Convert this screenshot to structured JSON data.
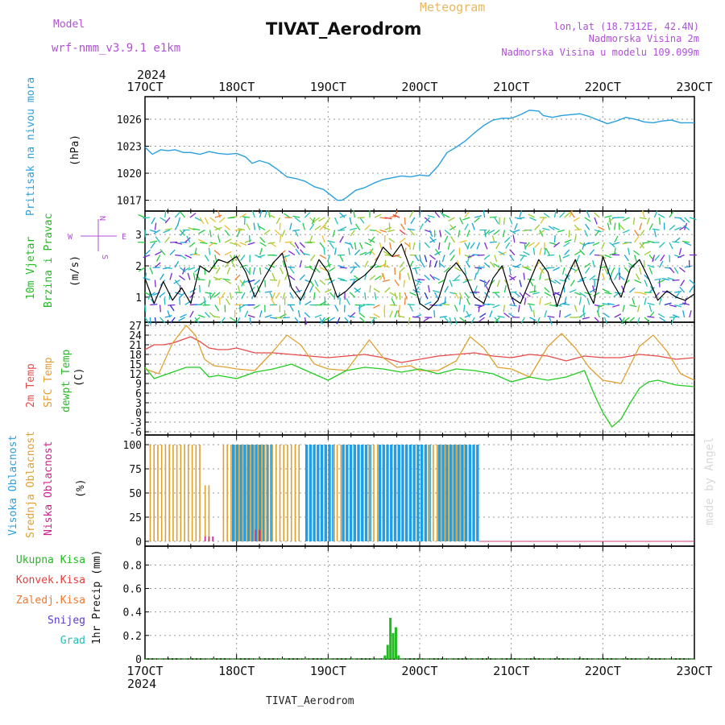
{
  "header": {
    "model_label": "Model",
    "model_name": "wrf-nmm_v3.9.1  e1km",
    "meteogram_label": "Meteogram",
    "station_title": "TIVAT_Aerodrom",
    "lonlat": "lon,lat (18.7312E, 42.4N)",
    "altitude": "Nadmorska Visina 2m",
    "model_altitude": "Nadmorska Visina u modelu 109.099m",
    "footer_station": "TIVAT_Aerodrom",
    "watermark": "made by Angel"
  },
  "x_axis": {
    "year": "2024",
    "ticks": [
      "17OCT",
      "18OCT",
      "19OCT",
      "20OCT",
      "21OCT",
      "22OCT",
      "23OCT"
    ]
  },
  "colors": {
    "pressure": "#2aa0e0",
    "temp2m": "#e84a4a",
    "sfc": "#e0a030",
    "dewpt": "#22cc22",
    "high_cloud": "#1e9ee6",
    "mid_cloud": "#e0a030",
    "low_cloud": "#d0208a",
    "precip_total": "#22bb22",
    "conv": "#e83c3c",
    "frozen": "#f07830",
    "snow": "#5a3ad0",
    "grad": "#22c0b8",
    "wind_speed_line": "#000000",
    "purple_label": "#b050d8"
  },
  "chart_data": [
    {
      "type": "line",
      "panel": "pressure",
      "ylabel": [
        "Pritisak na nivou mora",
        "(hPa)"
      ],
      "yticks": [
        1017,
        1020,
        1023,
        1026
      ],
      "ylim": [
        1015.8,
        1028.5
      ],
      "x_day_range": [
        17,
        23
      ],
      "series": [
        {
          "color_key": "pressure",
          "x": [
            17.0,
            17.08,
            17.17,
            17.25,
            17.33,
            17.42,
            17.5,
            17.6,
            17.7,
            17.8,
            17.9,
            18.0,
            18.1,
            18.17,
            18.25,
            18.35,
            18.45,
            18.55,
            18.65,
            18.75,
            18.85,
            18.95,
            19.05,
            19.1,
            19.15,
            19.2,
            19.3,
            19.4,
            19.5,
            19.6,
            19.7,
            19.8,
            19.9,
            20.0,
            20.1,
            20.2,
            20.3,
            20.4,
            20.5,
            20.6,
            20.7,
            20.8,
            20.9,
            21.0,
            21.1,
            21.2,
            21.3,
            21.35,
            21.45,
            21.55,
            21.65,
            21.75,
            21.85,
            21.95,
            22.05,
            22.15,
            22.25,
            22.35,
            22.45,
            22.55,
            22.65,
            22.75,
            22.85,
            23.0
          ],
          "y": [
            1022.9,
            1022.1,
            1022.6,
            1022.5,
            1022.6,
            1022.3,
            1022.3,
            1022.1,
            1022.4,
            1022.2,
            1022.1,
            1022.2,
            1021.8,
            1021.1,
            1021.4,
            1021.1,
            1020.4,
            1019.6,
            1019.4,
            1019.1,
            1018.5,
            1018.2,
            1017.4,
            1017.0,
            1017.0,
            1017.3,
            1018.1,
            1018.4,
            1018.9,
            1019.3,
            1019.5,
            1019.7,
            1019.6,
            1019.8,
            1019.7,
            1020.8,
            1022.3,
            1022.9,
            1023.6,
            1024.5,
            1025.3,
            1025.9,
            1026.1,
            1026.1,
            1026.5,
            1027.0,
            1026.9,
            1026.4,
            1026.2,
            1026.4,
            1026.5,
            1026.6,
            1026.3,
            1025.9,
            1025.5,
            1025.8,
            1026.2,
            1026.0,
            1025.7,
            1025.6,
            1025.8,
            1025.9,
            1025.6,
            1025.6
          ]
        }
      ]
    },
    {
      "type": "line",
      "panel": "wind",
      "ylabel": [
        "10m Vjetar",
        "Brzina i Pravac",
        "(m/s)"
      ],
      "yticks": [
        1,
        2,
        3
      ],
      "ylim": [
        0.2,
        3.75
      ],
      "legend_glyph": [
        "W",
        "E",
        "N",
        "S"
      ],
      "series": [
        {
          "color_key": "wind_speed_line",
          "x": [
            17.0,
            17.1,
            17.2,
            17.3,
            17.4,
            17.5,
            17.6,
            17.7,
            17.8,
            17.9,
            18.0,
            18.1,
            18.2,
            18.3,
            18.4,
            18.5,
            18.6,
            18.7,
            18.8,
            18.9,
            19.0,
            19.1,
            19.2,
            19.3,
            19.4,
            19.5,
            19.6,
            19.7,
            19.8,
            19.9,
            20.0,
            20.1,
            20.2,
            20.3,
            20.4,
            20.5,
            20.6,
            20.7,
            20.8,
            20.9,
            21.0,
            21.1,
            21.2,
            21.3,
            21.4,
            21.5,
            21.6,
            21.7,
            21.8,
            21.9,
            22.0,
            22.1,
            22.2,
            22.3,
            22.4,
            22.5,
            22.6,
            22.7,
            22.8,
            22.9,
            23.0
          ],
          "y": [
            1.6,
            0.8,
            1.5,
            0.9,
            1.3,
            0.8,
            2.0,
            1.8,
            2.2,
            2.1,
            2.3,
            1.8,
            1.0,
            1.6,
            2.1,
            2.4,
            1.3,
            0.9,
            1.5,
            2.2,
            1.8,
            1.0,
            1.2,
            1.5,
            1.7,
            2.0,
            2.6,
            2.3,
            2.7,
            1.9,
            0.8,
            0.6,
            0.9,
            1.8,
            2.1,
            1.7,
            1.0,
            0.8,
            1.6,
            2.0,
            1.0,
            0.8,
            1.5,
            2.2,
            1.8,
            0.7,
            1.6,
            2.2,
            1.4,
            0.8,
            2.3,
            1.5,
            1.0,
            1.9,
            2.2,
            1.6,
            0.9,
            1.2,
            1.0,
            0.9,
            1.1
          ]
        }
      ]
    },
    {
      "type": "line",
      "panel": "temperature",
      "ylabel": [
        "2m Temp",
        "SFC Temp",
        "dewpt Temp",
        "(C)"
      ],
      "yticks": [
        -6,
        -3,
        0,
        3,
        6,
        9,
        12,
        15,
        18,
        21,
        24,
        27
      ],
      "ylim": [
        -7,
        28
      ],
      "series": [
        {
          "color_key": "temp2m",
          "x": [
            17.0,
            17.1,
            17.2,
            17.3,
            17.4,
            17.5,
            17.6,
            17.7,
            17.8,
            17.9,
            18.0,
            18.2,
            18.4,
            18.6,
            18.8,
            19.0,
            19.2,
            19.4,
            19.6,
            19.8,
            20.0,
            20.2,
            20.4,
            20.6,
            20.8,
            21.0,
            21.2,
            21.4,
            21.6,
            21.8,
            22.0,
            22.2,
            22.4,
            22.6,
            22.8,
            23.0
          ],
          "y": [
            19.5,
            21.0,
            21.0,
            21.5,
            22.5,
            23.5,
            22.0,
            20.0,
            19.5,
            19.5,
            20.0,
            18.5,
            18.5,
            18.0,
            17.5,
            17.0,
            17.5,
            18.0,
            17.0,
            15.5,
            16.5,
            17.5,
            18.0,
            18.5,
            17.5,
            17.0,
            18.0,
            17.5,
            16.0,
            17.5,
            17.0,
            17.0,
            18.0,
            17.5,
            16.5,
            17.0
          ]
        },
        {
          "color_key": "sfc",
          "x": [
            17.0,
            17.15,
            17.3,
            17.45,
            17.55,
            17.65,
            17.75,
            17.9,
            18.0,
            18.2,
            18.4,
            18.55,
            18.7,
            18.85,
            19.0,
            19.2,
            19.45,
            19.6,
            19.75,
            19.9,
            20.0,
            20.2,
            20.4,
            20.55,
            20.7,
            20.85,
            21.0,
            21.2,
            21.4,
            21.55,
            21.7,
            21.85,
            22.0,
            22.2,
            22.4,
            22.55,
            22.7,
            22.85,
            23.0
          ],
          "y": [
            13.5,
            12.0,
            21.5,
            27.0,
            24.0,
            16.5,
            14.5,
            14.0,
            13.5,
            13.0,
            19.0,
            24.0,
            21.0,
            15.0,
            13.5,
            13.0,
            22.5,
            17.0,
            14.0,
            14.5,
            13.0,
            13.0,
            16.0,
            23.5,
            20.0,
            14.0,
            13.5,
            11.0,
            20.5,
            24.5,
            20.0,
            14.0,
            10.0,
            9.0,
            20.5,
            24.0,
            19.0,
            12.0,
            10.0
          ]
        },
        {
          "color_key": "dewpt",
          "x": [
            17.0,
            17.1,
            17.2,
            17.3,
            17.45,
            17.6,
            17.7,
            17.8,
            18.0,
            18.2,
            18.4,
            18.6,
            18.8,
            19.0,
            19.2,
            19.4,
            19.6,
            19.8,
            20.0,
            20.2,
            20.4,
            20.6,
            20.8,
            21.0,
            21.2,
            21.4,
            21.6,
            21.8,
            21.9,
            22.0,
            22.1,
            22.2,
            22.3,
            22.4,
            22.5,
            22.6,
            22.8,
            23.0
          ],
          "y": [
            14.0,
            10.5,
            11.5,
            12.5,
            14.0,
            14.0,
            11.0,
            11.5,
            10.5,
            12.5,
            13.5,
            15.0,
            12.5,
            10.0,
            13.0,
            14.0,
            13.5,
            12.5,
            13.5,
            12.0,
            13.5,
            13.0,
            12.0,
            9.5,
            11.0,
            10.0,
            11.0,
            13.0,
            6.0,
            0.0,
            -4.5,
            -2.0,
            3.0,
            7.5,
            9.5,
            10.0,
            8.5,
            8.0
          ]
        }
      ]
    },
    {
      "type": "bar",
      "panel": "cloud",
      "ylabel": [
        "Visoka Oblacnost",
        "Srednja Oblacnost",
        "Niska Oblacnost",
        "(%)"
      ],
      "yticks": [
        0,
        25,
        50,
        75,
        100
      ],
      "ylim": [
        -5,
        110
      ],
      "series": [
        {
          "color_key": "high_cloud",
          "name": "Visoka Oblacnost",
          "segments": [
            {
              "from": 17.95,
              "to": 18.4,
              "value": 100
            },
            {
              "from": 18.75,
              "to": 19.05,
              "value": 100
            },
            {
              "from": 19.15,
              "to": 19.45,
              "value": 100
            },
            {
              "from": 19.55,
              "to": 20.1,
              "value": 100
            },
            {
              "from": 20.2,
              "to": 20.65,
              "value": 100
            }
          ]
        },
        {
          "color_key": "mid_cloud",
          "name": "Srednja Oblacnost",
          "segments": [
            {
              "from": 17.05,
              "to": 17.6,
              "value": 100
            },
            {
              "from": 17.65,
              "to": 17.7,
              "value": 58
            },
            {
              "from": 17.85,
              "to": 18.3,
              "value": 100
            },
            {
              "from": 18.3,
              "to": 18.7,
              "value": 100
            },
            {
              "from": 19.05,
              "to": 19.15,
              "value": 100
            },
            {
              "from": 19.45,
              "to": 19.55,
              "value": 100
            },
            {
              "from": 20.1,
              "to": 20.5,
              "value": 100
            }
          ]
        },
        {
          "color_key": "low_cloud",
          "name": "Niska Oblacnost",
          "segments": [
            {
              "from": 17.65,
              "to": 17.75,
              "value": 5
            },
            {
              "from": 18.2,
              "to": 18.25,
              "value": 12
            }
          ]
        }
      ]
    },
    {
      "type": "bar",
      "panel": "precip",
      "ylabel": [
        "1hr Precip (mm)"
      ],
      "legend": [
        "Ukupna Kisa",
        "Konvek.Kisa",
        "Zaledj.Kisa",
        "Snijeg",
        "Grad"
      ],
      "legend_color_keys": [
        "precip_total",
        "conv",
        "frozen",
        "snow",
        "grad"
      ],
      "yticks": [
        0,
        0.2,
        0.4,
        0.6,
        0.8
      ],
      "ylim": [
        0,
        0.96
      ],
      "series": [
        {
          "color_key": "precip_total",
          "x": [
            19.62,
            19.65,
            19.68,
            19.71,
            19.74,
            19.77
          ],
          "y": [
            0.03,
            0.12,
            0.35,
            0.22,
            0.27,
            0.03
          ]
        }
      ]
    }
  ]
}
